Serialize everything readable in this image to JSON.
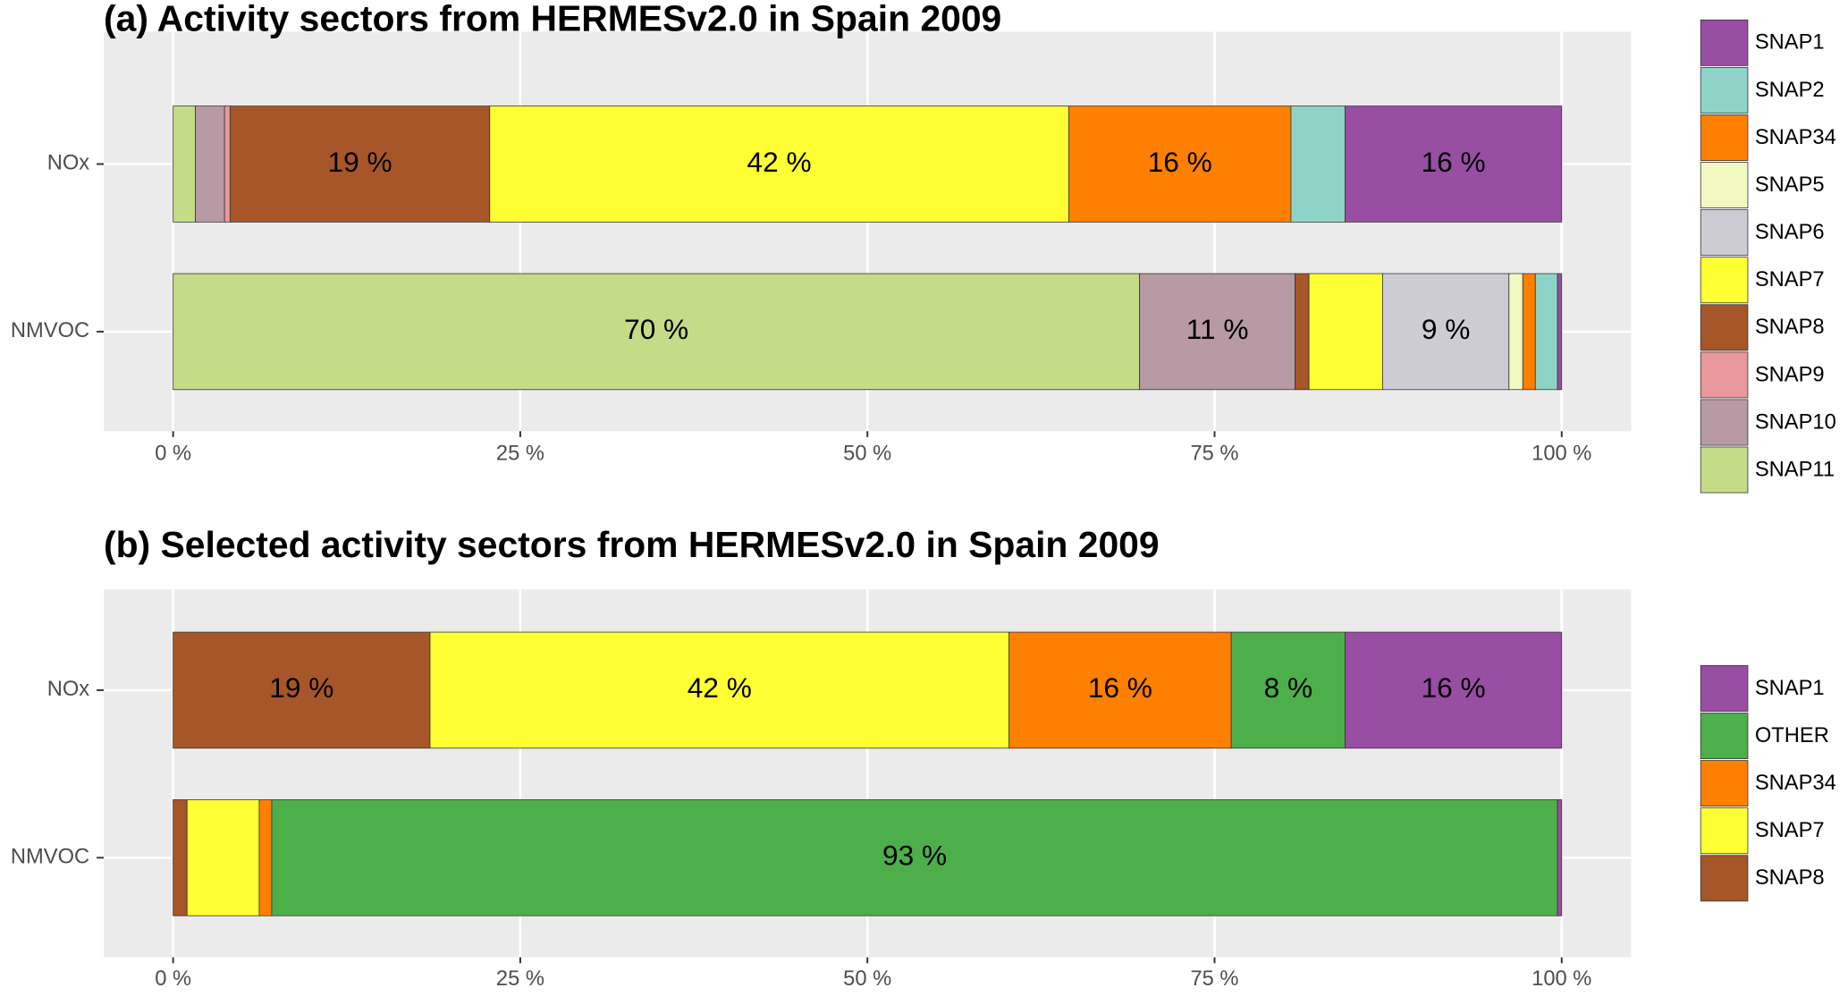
{
  "chart_data": [
    {
      "type": "bar",
      "orientation": "horizontal",
      "stacked": true,
      "title": "(a) Activity sectors from  HERMESv2.0 in Spain 2009",
      "categories": [
        "NOx",
        "NMVOC"
      ],
      "series": [
        {
          "name": "SNAP1",
          "color": "#984ea3",
          "values": [
            15.6,
            0.3
          ],
          "value_labels": [
            "16 %",
            null
          ]
        },
        {
          "name": "SNAP2",
          "color": "#8dd3c7",
          "values": [
            3.9,
            1.6
          ],
          "value_labels": [
            null,
            null
          ]
        },
        {
          "name": "SNAP34",
          "color": "#ff7f00",
          "values": [
            16.0,
            0.9
          ],
          "value_labels": [
            "16 %",
            null
          ]
        },
        {
          "name": "SNAP5",
          "color": "#f2f8c2",
          "values": [
            0,
            1.0
          ],
          "value_labels": [
            null,
            null
          ]
        },
        {
          "name": "SNAP6",
          "color": "#cdccd4",
          "values": [
            0,
            9.1
          ],
          "value_labels": [
            null,
            "9  %"
          ]
        },
        {
          "name": "SNAP7",
          "color": "#ffff33",
          "values": [
            41.7,
            5.3
          ],
          "value_labels": [
            "42 %",
            null
          ]
        },
        {
          "name": "SNAP8",
          "color": "#a65628",
          "values": [
            18.7,
            1.0
          ],
          "value_labels": [
            "19 %",
            null
          ]
        },
        {
          "name": "SNAP9",
          "color": "#e8979a",
          "values": [
            0.4,
            0
          ],
          "value_labels": [
            null,
            null
          ]
        },
        {
          "name": "SNAP10",
          "color": "#b89aa4",
          "values": [
            2.1,
            11.2
          ],
          "value_labels": [
            null,
            "11 %"
          ]
        },
        {
          "name": "SNAP11",
          "color": "#c4db88",
          "values": [
            1.6,
            69.6
          ],
          "value_labels": [
            null,
            "70 %"
          ]
        }
      ],
      "xlim": [
        -5,
        105
      ],
      "xticks": [
        {
          "value": 0,
          "label": "0 %"
        },
        {
          "value": 25,
          "label": "25 %"
        },
        {
          "value": 50,
          "label": "50 %"
        },
        {
          "value": 75,
          "label": "75 %"
        },
        {
          "value": 100,
          "label": "100 %"
        }
      ],
      "grid": true,
      "legend": "right"
    },
    {
      "type": "bar",
      "orientation": "horizontal",
      "stacked": true,
      "title": "(b) Selected activity sectors from HERMESv2.0 in Spain 2009",
      "categories": [
        "NOx",
        "NMVOC"
      ],
      "series": [
        {
          "name": "SNAP1",
          "color": "#984ea3",
          "values": [
            15.6,
            0.3
          ],
          "value_labels": [
            "16 %",
            null
          ]
        },
        {
          "name": "OTHER",
          "color": "#4daf4a",
          "values": [
            8.2,
            92.6
          ],
          "value_labels": [
            "8 %",
            "93 %"
          ]
        },
        {
          "name": "SNAP34",
          "color": "#ff7f00",
          "values": [
            16.0,
            0.9
          ],
          "value_labels": [
            "16 %",
            null
          ]
        },
        {
          "name": "SNAP7",
          "color": "#ffff33",
          "values": [
            41.7,
            5.2
          ],
          "value_labels": [
            "42 %",
            null
          ]
        },
        {
          "name": "SNAP8",
          "color": "#a65628",
          "values": [
            18.5,
            1.0
          ],
          "value_labels": [
            "19 %",
            null
          ]
        }
      ],
      "xlim": [
        -5,
        105
      ],
      "xticks": [
        {
          "value": 0,
          "label": "0 %"
        },
        {
          "value": 25,
          "label": "25 %"
        },
        {
          "value": 50,
          "label": "50 %"
        },
        {
          "value": 75,
          "label": "75 %"
        },
        {
          "value": 100,
          "label": "100 %"
        }
      ],
      "grid": true,
      "legend": "right"
    }
  ]
}
